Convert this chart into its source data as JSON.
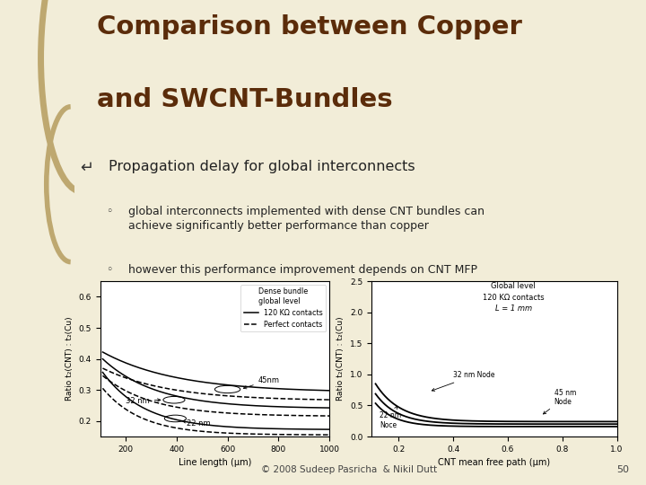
{
  "title_line1": "Comparison between Copper",
  "title_line2": "and SWCNT-Bundles",
  "title_color": "#5B2C0A",
  "bullet1": "Propagation delay for global interconnects",
  "sub1": "global interconnects implemented with dense CNT bundles can\nachieve significantly better performance than copper",
  "sub2": "however this performance improvement depends on CNT MFP",
  "footer": "© 2008 Sudeep Pasricha  & Nikil Dutt",
  "page": "50",
  "bg_color": "#F2EDD8",
  "left_panel_color": "#D4C49A",
  "plot_bg": "#FFFFFF",
  "plot1_xlabel": "Line length (μm)",
  "plot1_ylabel": "Ratio t₂(CNT) : t₂(Cu)",
  "plot1_title_line1": "Dense bundle",
  "plot1_title_line2": "global level",
  "plot1_legend1": "120 KΩ contacts",
  "plot1_legend2": "Perfect contacts",
  "plot1_xlim": [
    100,
    1000
  ],
  "plot1_ylim": [
    0.15,
    0.65
  ],
  "plot1_yticks": [
    0.2,
    0.3,
    0.4,
    0.5,
    0.6
  ],
  "plot1_xticks": [
    200,
    400,
    600,
    800,
    1000
  ],
  "plot2_xlabel": "CNT mean free path (μm)",
  "plot2_ylabel": "Ratio t₂(CNT) : t₂(Cu)",
  "plot2_title_line1": "Global level",
  "plot2_title_line2": "120 KΩ contacts",
  "plot2_title_line3": "L = 1 mm",
  "plot2_xlim": [
    0.1,
    1.0
  ],
  "plot2_ylim": [
    0,
    2.5
  ],
  "plot2_yticks": [
    0,
    0.5,
    1.0,
    1.5,
    2.0,
    2.5
  ],
  "plot2_xticks": [
    0.2,
    0.4,
    0.6,
    0.8,
    1.0
  ]
}
